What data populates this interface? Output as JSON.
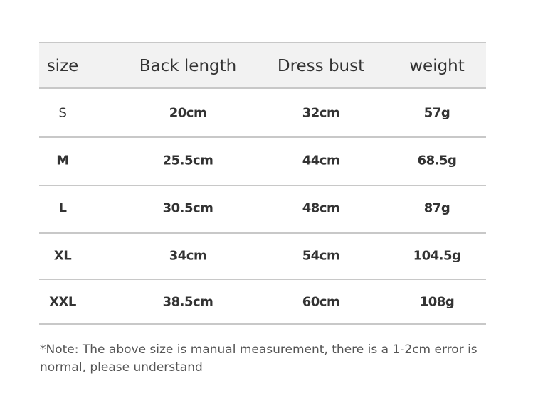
{
  "table": {
    "headers": [
      "size",
      "Back length",
      "Dress bust",
      "weight"
    ],
    "rows": [
      [
        "S",
        "20cm",
        "32cm",
        "57g"
      ],
      [
        "M",
        "25.5cm",
        "44cm",
        "68.5g"
      ],
      [
        "L",
        "30.5cm",
        "48cm",
        "87g"
      ],
      [
        "XL",
        "34cm",
        "54cm",
        "104.5g"
      ],
      [
        "XXL",
        "38.5cm",
        "60cm",
        "108g"
      ]
    ]
  },
  "note": "*Note: The above size is manual measurement, there is a 1-2cm error is normal, please understand",
  "colors": {
    "header_bg": "#f2f2f2",
    "text": "#333333",
    "rule": "#c8c8c8"
  }
}
